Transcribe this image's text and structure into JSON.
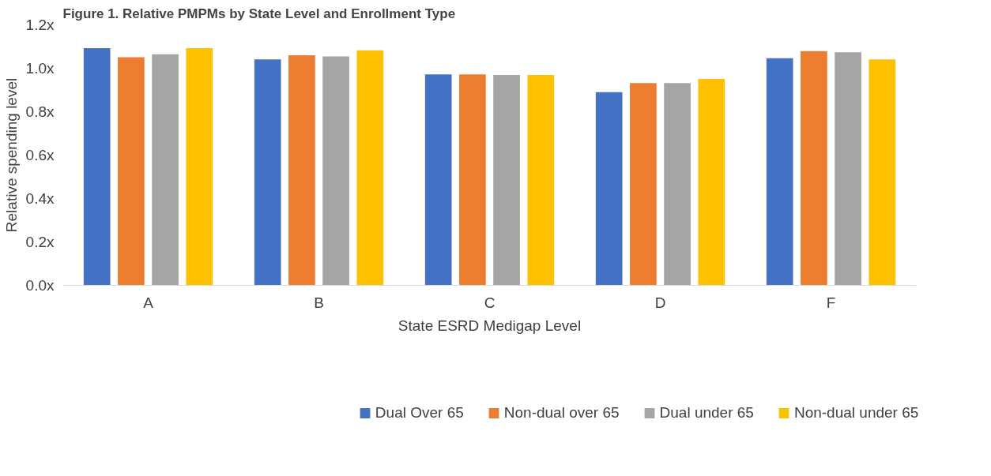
{
  "chart_data": {
    "type": "bar",
    "title": "Figure 1. Relative PMPMs by State Level and Enrollment Type",
    "xlabel": "State ESRD Medigap Level",
    "ylabel": "Relative spending level",
    "categories": [
      "A",
      "B",
      "C",
      "D",
      "F"
    ],
    "series": [
      {
        "name": "Dual Over 65",
        "color": "#4472c4",
        "values": [
          1.093,
          1.041,
          0.972,
          0.89,
          1.046
        ]
      },
      {
        "name": "Non-dual over 65",
        "color": "#ed7d31",
        "values": [
          1.051,
          1.06,
          0.972,
          0.932,
          1.079
        ]
      },
      {
        "name": "Dual under 65",
        "color": "#a5a5a5",
        "values": [
          1.065,
          1.055,
          0.969,
          0.932,
          1.074
        ]
      },
      {
        "name": "Non-dual under 65",
        "color": "#ffc000",
        "values": [
          1.093,
          1.083,
          0.969,
          0.951,
          1.041
        ]
      }
    ],
    "ylim": [
      0,
      1.2
    ],
    "yticks": [
      {
        "value": 0,
        "label": "0.0x"
      },
      {
        "value": 0.2,
        "label": "0.2x"
      },
      {
        "value": 0.4,
        "label": "0.4x"
      },
      {
        "value": 0.6,
        "label": "0.6x"
      },
      {
        "value": 0.8,
        "label": "0.8x"
      },
      {
        "value": 1.0,
        "label": "1.0x"
      },
      {
        "value": 1.2,
        "label": "1.2x"
      }
    ],
    "grid": false,
    "legend": "bottom"
  }
}
